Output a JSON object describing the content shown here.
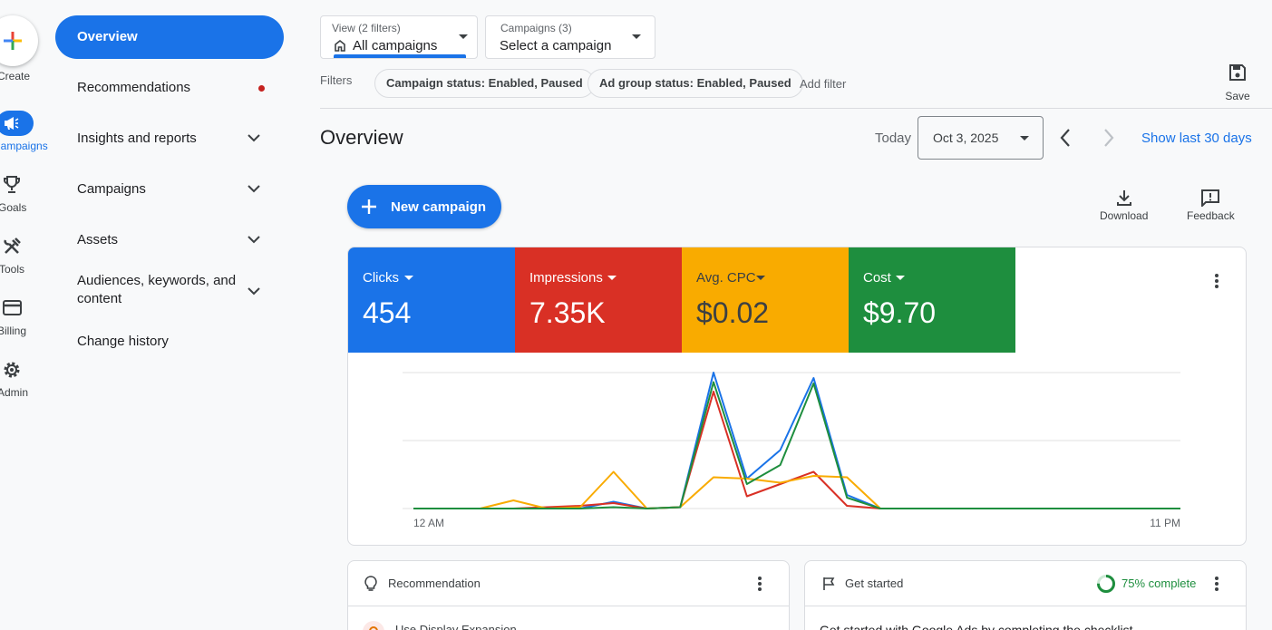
{
  "rail": {
    "create": "Create",
    "items": [
      {
        "label": "Campaigns",
        "active": true
      },
      {
        "label": "Goals"
      },
      {
        "label": "Tools"
      },
      {
        "label": "Billing"
      },
      {
        "label": "Admin"
      }
    ]
  },
  "nav": {
    "overview": "Overview",
    "recommendations": "Recommendations",
    "insights": "Insights and reports",
    "campaigns": "Campaigns",
    "assets": "Assets",
    "audiences": "Audiences, keywords, and content",
    "change_history": "Change history"
  },
  "view_selector": {
    "small": "View (2 filters)",
    "value": "All campaigns"
  },
  "campaign_selector": {
    "small": "Campaigns (3)",
    "value": "Select a campaign"
  },
  "filters": {
    "label": "Filters",
    "chips": [
      "Campaign status: Enabled, Paused",
      "Ad group status: Enabled, Paused"
    ],
    "add": "Add filter"
  },
  "save_label": "Save",
  "page_title": "Overview",
  "date": {
    "today": "Today",
    "value": "Oct 3, 2025",
    "show_last": "Show last 30 days"
  },
  "new_campaign": "New campaign",
  "download": "Download",
  "feedback": "Feedback",
  "metrics": [
    {
      "label": "Clicks",
      "value": "454",
      "color": "#1a73e8"
    },
    {
      "label": "Impressions",
      "value": "7.35K",
      "color": "#d93025"
    },
    {
      "label": "Avg. CPC",
      "value": "$0.02",
      "color": "#f9ab00"
    },
    {
      "label": "Cost",
      "value": "$9.70",
      "color": "#1e8e3e"
    }
  ],
  "chart_data": {
    "type": "line",
    "x_start_label": "12 AM",
    "x_end_label": "11 PM",
    "x": [
      0,
      1,
      2,
      3,
      4,
      5,
      6,
      7,
      8,
      9,
      10,
      11,
      12,
      13,
      14,
      15,
      16,
      17,
      18,
      19,
      20,
      21,
      22,
      23
    ],
    "series": [
      {
        "color": "#1a73e8",
        "values": [
          0,
          0,
          0,
          0,
          0,
          0,
          0.05,
          0,
          0.01,
          1.0,
          0.22,
          0.43,
          0.96,
          0.1,
          0,
          0,
          0,
          0,
          0,
          0,
          0,
          0,
          0,
          0
        ]
      },
      {
        "color": "#d93025",
        "values": [
          0,
          0,
          0,
          0,
          0.01,
          0.02,
          0.04,
          0,
          0.01,
          0.86,
          0.09,
          0.18,
          0.27,
          0.02,
          0,
          0,
          0,
          0,
          0,
          0,
          0,
          0,
          0,
          0
        ]
      },
      {
        "color": "#f9ab00",
        "values": [
          0,
          0,
          0,
          0.06,
          0,
          0.01,
          0.27,
          0,
          0.01,
          0.23,
          0.22,
          0.19,
          0.24,
          0.23,
          0,
          0,
          0,
          0,
          0,
          0,
          0,
          0,
          0,
          0
        ]
      },
      {
        "color": "#1e8e3e",
        "values": [
          0,
          0,
          0,
          0,
          0,
          0,
          0.01,
          0,
          0.01,
          0.93,
          0.18,
          0.32,
          0.92,
          0.08,
          0,
          0,
          0,
          0,
          0,
          0,
          0,
          0,
          0,
          0
        ]
      }
    ],
    "gridlines": 3
  },
  "recommendation": {
    "title": "Recommendation",
    "item": "Use Display Expansion"
  },
  "get_started": {
    "title": "Get started",
    "progress": "75% complete",
    "progress_value": 0.75,
    "body": "Get started with Google Ads by completing the checklist"
  }
}
